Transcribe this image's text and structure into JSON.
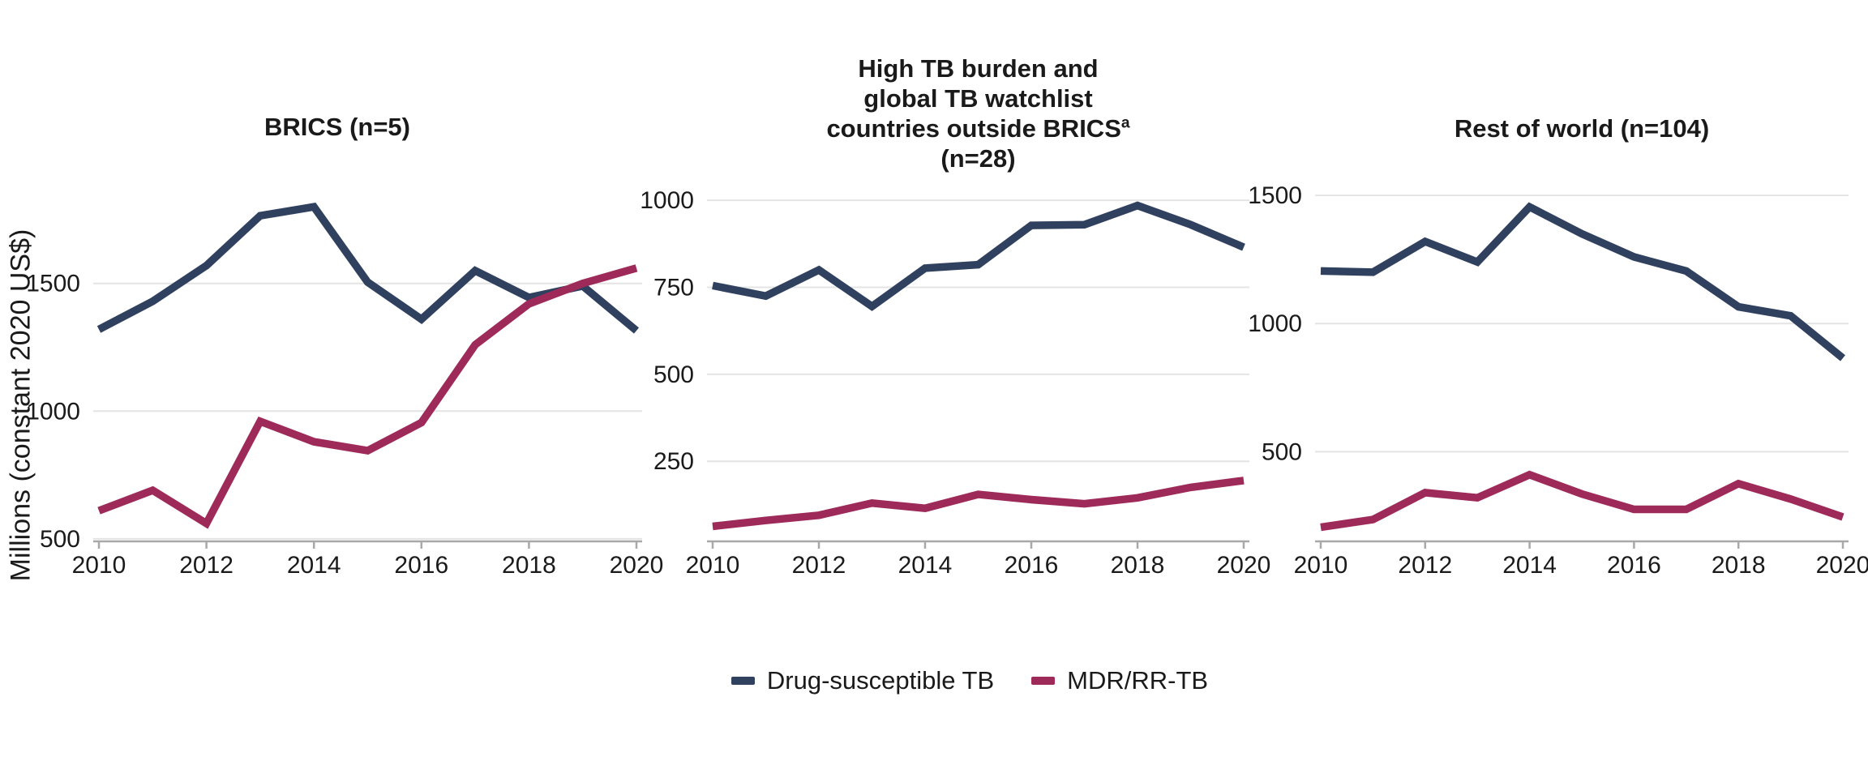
{
  "figure": {
    "background": "#ffffff",
    "text_color": "#1a1a1a",
    "gridline_color": "#e4e4e4",
    "axis_color": "#a8a8a8",
    "ylabel": "Millions (constant 2020 US$)"
  },
  "legend": [
    {
      "label": "Drug-susceptible TB",
      "color": "#30415F"
    },
    {
      "label": "MDR/RR-TB",
      "color": "#9E2A5A"
    }
  ],
  "chart_data": [
    {
      "type": "line",
      "title": "BRICS (n=5)",
      "x": [
        2010,
        2011,
        2012,
        2013,
        2014,
        2015,
        2016,
        2017,
        2018,
        2019,
        2020
      ],
      "x_ticks": [
        2010,
        2012,
        2014,
        2016,
        2018,
        2020
      ],
      "ylim": [
        490,
        1880
      ],
      "y_ticks": [
        500,
        1000,
        1500
      ],
      "grid": "horizontal",
      "legend_position": "bottom-shared",
      "series": [
        {
          "name": "Drug-susceptible TB",
          "color": "#30415F",
          "values": [
            1320,
            1430,
            1570,
            1765,
            1800,
            1505,
            1360,
            1550,
            1445,
            1490,
            1315
          ]
        },
        {
          "name": "MDR/RR-TB",
          "color": "#9E2A5A",
          "values": [
            610,
            690,
            560,
            960,
            880,
            845,
            955,
            1260,
            1420,
            1500,
            1560
          ]
        }
      ]
    },
    {
      "type": "line",
      "title_lines": [
        "High TB burden and",
        "global TB watchlist",
        "countries outside BRICS",
        "(n=28)"
      ],
      "title_superscript": "a",
      "x": [
        2010,
        2011,
        2012,
        2013,
        2014,
        2015,
        2016,
        2017,
        2018,
        2019,
        2020
      ],
      "x_ticks": [
        2010,
        2012,
        2014,
        2016,
        2018,
        2020
      ],
      "ylim": [
        20,
        1040
      ],
      "y_ticks": [
        250,
        500,
        750,
        1000
      ],
      "grid": "horizontal",
      "legend_position": "bottom-shared",
      "series": [
        {
          "name": "Drug-susceptible TB",
          "color": "#30415F",
          "values": [
            755,
            725,
            800,
            695,
            805,
            815,
            928,
            930,
            985,
            930,
            865
          ]
        },
        {
          "name": "MDR/RR-TB",
          "color": "#9E2A5A",
          "values": [
            63,
            80,
            95,
            130,
            115,
            155,
            140,
            128,
            145,
            175,
            195
          ]
        }
      ]
    },
    {
      "type": "line",
      "title": "Rest of world (n=104)",
      "x": [
        2010,
        2011,
        2012,
        2013,
        2014,
        2015,
        2016,
        2017,
        2018,
        2019,
        2020
      ],
      "x_ticks": [
        2010,
        2012,
        2014,
        2016,
        2018,
        2020
      ],
      "ylim": [
        150,
        1535
      ],
      "y_ticks": [
        500,
        1000,
        1500
      ],
      "grid": "horizontal",
      "legend_position": "bottom-shared",
      "series": [
        {
          "name": "Drug-susceptible TB",
          "color": "#30415F",
          "values": [
            1205,
            1200,
            1320,
            1240,
            1455,
            1350,
            1260,
            1205,
            1065,
            1030,
            865
          ]
        },
        {
          "name": "MDR/RR-TB",
          "color": "#9E2A5A",
          "values": [
            205,
            235,
            340,
            320,
            410,
            335,
            275,
            275,
            375,
            315,
            245
          ]
        }
      ]
    }
  ]
}
